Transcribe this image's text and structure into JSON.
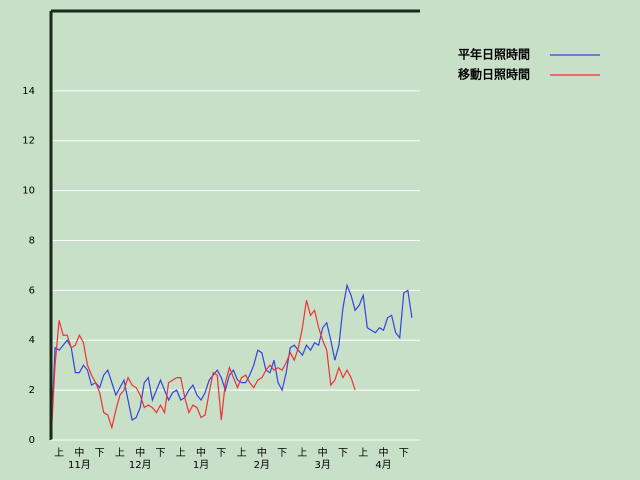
{
  "chart_data": {
    "type": "line",
    "x": [
      0,
      2,
      4,
      6,
      8,
      10,
      12,
      14,
      16,
      18,
      20,
      22,
      24,
      26,
      28,
      30,
      32,
      34,
      36,
      38,
      40,
      42,
      44,
      46,
      48,
      50,
      52,
      54,
      56,
      58,
      60,
      62,
      64,
      66,
      68,
      70,
      72,
      74,
      76,
      78,
      80,
      82,
      84,
      86,
      88,
      90,
      92,
      94,
      96,
      98,
      100,
      102,
      104,
      106,
      108,
      110,
      112,
      114,
      116,
      118,
      120,
      122,
      124,
      126,
      128,
      130,
      132,
      134,
      136,
      138,
      140,
      142,
      144,
      146,
      148,
      150,
      152,
      154,
      156,
      158,
      160,
      162,
      164,
      166,
      168,
      170,
      172,
      174,
      176,
      178
    ],
    "series": [
      {
        "name": "平年日照時間",
        "color": "#3344dd",
        "values": [
          0,
          3.7,
          3.6,
          3.8,
          4.0,
          3.7,
          2.7,
          2.7,
          3.0,
          2.8,
          2.2,
          2.3,
          2.1,
          2.6,
          2.8,
          2.3,
          1.8,
          2.1,
          2.4,
          1.6,
          0.8,
          0.9,
          1.3,
          2.3,
          2.5,
          1.6,
          2.0,
          2.4,
          2.0,
          1.6,
          1.9,
          2.0,
          1.6,
          1.7,
          2.0,
          2.2,
          1.8,
          1.6,
          1.9,
          2.4,
          2.6,
          2.8,
          2.5,
          2.0,
          2.6,
          2.8,
          2.4,
          2.3,
          2.3,
          2.6,
          3.0,
          3.6,
          3.5,
          2.8,
          2.7,
          3.2,
          2.3,
          2.0,
          2.7,
          3.7,
          3.8,
          3.6,
          3.4,
          3.8,
          3.6,
          3.9,
          3.8,
          4.5,
          4.7,
          4.0,
          3.2,
          3.8,
          5.3,
          6.2,
          5.8,
          5.2,
          5.4,
          5.8,
          4.5,
          4.4,
          4.3,
          4.5,
          4.4,
          4.9,
          5.0,
          4.3,
          4.1,
          5.9,
          6.0,
          4.9
        ]
      },
      {
        "name": "移動日照時間",
        "color": "#ee3333",
        "values": [
          0,
          3.0,
          4.8,
          4.2,
          4.2,
          3.7,
          3.8,
          4.2,
          3.9,
          3.0,
          2.6,
          2.3,
          1.9,
          1.1,
          1.0,
          0.5,
          1.2,
          1.8,
          2.0,
          2.5,
          2.2,
          2.1,
          1.8,
          1.3,
          1.4,
          1.3,
          1.1,
          1.4,
          1.1,
          2.3,
          2.4,
          2.5,
          2.5,
          1.7,
          1.1,
          1.4,
          1.3,
          0.9,
          1.0,
          1.9,
          2.7,
          2.6,
          0.8,
          2.3,
          2.9,
          2.5,
          2.1,
          2.5,
          2.6,
          2.3,
          2.1,
          2.4,
          2.5,
          2.8,
          3.0,
          2.8,
          2.9,
          2.8,
          3.1,
          3.5,
          3.2,
          3.7,
          4.5,
          5.6,
          5.0,
          5.2,
          4.5,
          4.0,
          3.6,
          2.2,
          2.4,
          2.9,
          2.5,
          2.8,
          2.5,
          2.0,
          null,
          null,
          null,
          null,
          null,
          null,
          null,
          null,
          null,
          null,
          null,
          null,
          null,
          null
        ]
      }
    ],
    "xlim": [
      0,
      182
    ],
    "xticks": [
      {
        "value": 4,
        "label": "上"
      },
      {
        "value": 14,
        "label": "中"
      },
      {
        "value": 24,
        "label": "下"
      },
      {
        "value": 34,
        "label": "上"
      },
      {
        "value": 44,
        "label": "中"
      },
      {
        "value": 54,
        "label": "下"
      },
      {
        "value": 64,
        "label": "上"
      },
      {
        "value": 74,
        "label": "中"
      },
      {
        "value": 84,
        "label": "下"
      },
      {
        "value": 94,
        "label": "上"
      },
      {
        "value": 104,
        "label": "中"
      },
      {
        "value": 114,
        "label": "下"
      },
      {
        "value": 124,
        "label": "上"
      },
      {
        "value": 134,
        "label": "中"
      },
      {
        "value": 144,
        "label": "下"
      },
      {
        "value": 154,
        "label": "上"
      },
      {
        "value": 164,
        "label": "中"
      },
      {
        "value": 174,
        "label": "下"
      }
    ],
    "month_labels": [
      {
        "value": 14,
        "label": "11月"
      },
      {
        "value": 44,
        "label": "12月"
      },
      {
        "value": 74,
        "label": "1月"
      },
      {
        "value": 104,
        "label": "2月"
      },
      {
        "value": 134,
        "label": "3月"
      },
      {
        "value": 164,
        "label": "4月"
      }
    ],
    "ylim": [
      0,
      17.2
    ],
    "yticks": [
      0,
      2,
      4,
      6,
      8,
      10,
      12,
      14
    ],
    "grid": true
  }
}
